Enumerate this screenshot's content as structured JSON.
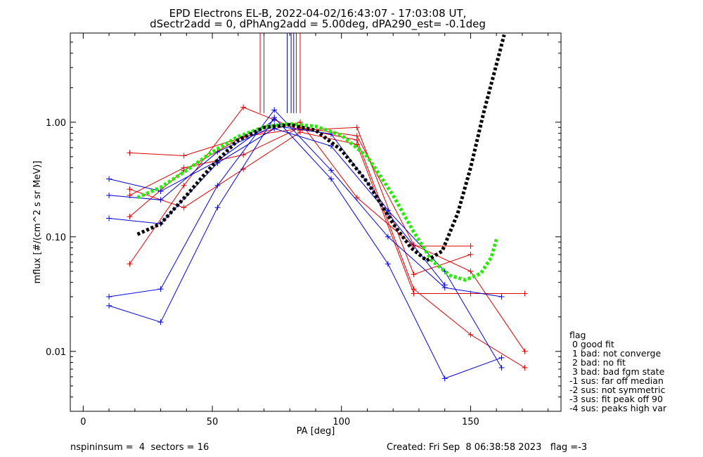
{
  "chart_data": {
    "type": "line",
    "title_line1": "EPD Electrons EL-B, 2022-04-02/16:43:07 - 17:03:08 UT,",
    "title_line2": "dSectr2add = 0, dPhAng2add = 5.00deg, dPA290_est=  -0.1deg",
    "xlabel": "PA [deg]",
    "ylabel": "mflux [#/(cm^2 s sr MeV)]",
    "xlim": [
      -5,
      185
    ],
    "ylim": [
      0.003,
      6
    ],
    "yscale": "log",
    "x_ticks": [
      {
        "value": 0,
        "label": "0"
      },
      {
        "value": 50,
        "label": "50"
      },
      {
        "value": 100,
        "label": "100"
      },
      {
        "value": 150,
        "label": "150"
      }
    ],
    "y_ticks": [
      {
        "value": 0.01,
        "label": "0.01"
      },
      {
        "value": 0.1,
        "label": "0.10"
      },
      {
        "value": 1,
        "label": "1.00"
      }
    ],
    "red_series": [
      [
        [
          18,
          0.058
        ],
        [
          39,
          0.28
        ],
        [
          62,
          1.35
        ],
        [
          84,
          0.85
        ],
        [
          106,
          0.9
        ],
        [
          128,
          0.047
        ],
        [
          150,
          0.07
        ]
      ],
      [
        [
          18,
          0.15
        ],
        [
          39,
          0.38
        ],
        [
          62,
          0.75
        ],
        [
          84,
          0.88
        ],
        [
          106,
          0.7
        ],
        [
          128,
          0.035
        ],
        [
          150,
          0.014
        ],
        [
          171,
          0.0072
        ]
      ],
      [
        [
          18,
          0.26
        ],
        [
          39,
          0.18
        ],
        [
          62,
          0.39
        ],
        [
          84,
          0.82
        ],
        [
          106,
          0.64
        ],
        [
          128,
          0.032
        ],
        [
          150,
          0.032
        ],
        [
          171,
          0.032
        ]
      ],
      [
        [
          18,
          0.54
        ],
        [
          39,
          0.51
        ],
        [
          62,
          0.74
        ],
        [
          84,
          1.0
        ],
        [
          106,
          0.22
        ],
        [
          128,
          0.083
        ],
        [
          150,
          0.083
        ]
      ],
      [
        [
          18,
          0.23
        ],
        [
          39,
          0.4
        ],
        [
          62,
          0.52
        ],
        [
          84,
          0.9
        ],
        [
          106,
          0.76
        ],
        [
          128,
          0.085
        ],
        [
          150,
          0.05
        ],
        [
          171,
          0.01
        ]
      ]
    ],
    "blue_series": [
      [
        [
          10,
          0.025
        ],
        [
          30,
          0.018
        ],
        [
          52,
          0.18
        ],
        [
          74,
          1.1
        ],
        [
          96,
          0.32
        ],
        [
          118,
          0.058
        ],
        [
          140,
          0.0058
        ],
        [
          162,
          0.0088
        ]
      ],
      [
        [
          10,
          0.03
        ],
        [
          30,
          0.035
        ],
        [
          52,
          0.28
        ],
        [
          74,
          1.28
        ],
        [
          96,
          0.38
        ],
        [
          118,
          0.1
        ],
        [
          140,
          0.036
        ],
        [
          162,
          0.03
        ]
      ],
      [
        [
          10,
          0.145
        ],
        [
          30,
          0.13
        ],
        [
          52,
          0.44
        ],
        [
          74,
          0.88
        ],
        [
          96,
          0.62
        ],
        [
          118,
          0.16
        ],
        [
          140,
          0.038
        ]
      ],
      [
        [
          10,
          0.23
        ],
        [
          30,
          0.21
        ],
        [
          52,
          0.55
        ],
        [
          74,
          0.93
        ],
        [
          96,
          0.79
        ],
        [
          118,
          0.17
        ],
        [
          140,
          0.05
        ],
        [
          162,
          0.0072
        ]
      ],
      [
        [
          10,
          0.32
        ],
        [
          30,
          0.25
        ],
        [
          52,
          0.46
        ],
        [
          74,
          1.05
        ]
      ]
    ],
    "black_fit": [
      [
        21,
        0.105
      ],
      [
        30,
        0.13
      ],
      [
        40,
        0.23
      ],
      [
        50,
        0.42
      ],
      [
        60,
        0.7
      ],
      [
        70,
        0.9
      ],
      [
        80,
        0.95
      ],
      [
        90,
        0.85
      ],
      [
        100,
        0.57
      ],
      [
        110,
        0.3
      ],
      [
        120,
        0.13
      ],
      [
        127,
        0.08
      ],
      [
        133,
        0.062
      ],
      [
        139,
        0.075
      ],
      [
        145,
        0.16
      ],
      [
        150,
        0.4
      ],
      [
        155,
        1.2
      ],
      [
        160,
        3.2
      ],
      [
        163,
        5.8
      ]
    ],
    "green_fit": [
      [
        21,
        0.22
      ],
      [
        30,
        0.27
      ],
      [
        40,
        0.38
      ],
      [
        50,
        0.55
      ],
      [
        60,
        0.75
      ],
      [
        70,
        0.91
      ],
      [
        80,
        0.97
      ],
      [
        90,
        0.92
      ],
      [
        100,
        0.77
      ],
      [
        110,
        0.5
      ],
      [
        120,
        0.23
      ],
      [
        128,
        0.11
      ],
      [
        135,
        0.062
      ],
      [
        142,
        0.046
      ],
      [
        148,
        0.042
      ],
      [
        154,
        0.048
      ],
      [
        158,
        0.066
      ],
      [
        160,
        0.095
      ]
    ],
    "red_vlines": [
      68.5,
      70,
      82.5,
      84
    ],
    "blue_vlines": [
      79,
      80.5,
      81.5
    ],
    "vline_range": [
      1.2,
      6
    ],
    "colors": {
      "red": "#dd0000",
      "blue": "#0000dd",
      "black": "#000000",
      "green": "#22ee00"
    }
  },
  "legend": {
    "title": "flag",
    "items": [
      " 0 good fit",
      " 1 bad: not converge",
      " 2 bad: no fit",
      " 3 bad: bad fgm state",
      "-1 sus: far off median",
      "-2 sus: not symmetric",
      "-3 sus: fit peak off 90",
      "-4 sus: peaks high var"
    ]
  },
  "footer": {
    "left": "nspininsum =  4  sectors = 16",
    "right": "Created: Fri Sep  8 06:38:58 2023   flag =-3"
  }
}
